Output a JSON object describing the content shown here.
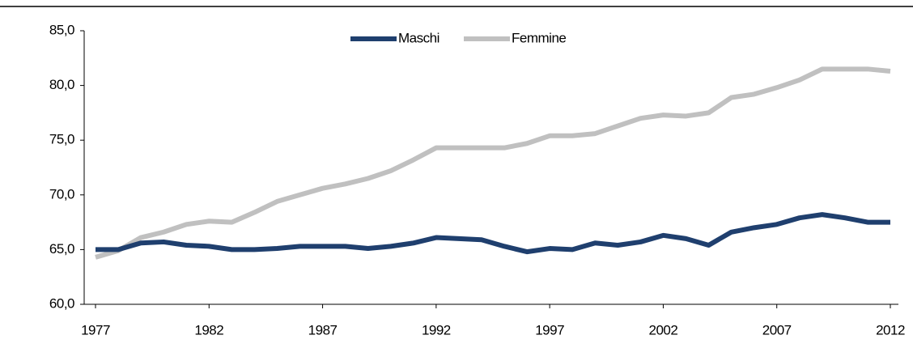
{
  "chart_data": {
    "type": "line",
    "x": [
      1977,
      1978,
      1979,
      1980,
      1981,
      1982,
      1983,
      1984,
      1985,
      1986,
      1987,
      1988,
      1989,
      1990,
      1991,
      1992,
      1993,
      1994,
      1995,
      1996,
      1997,
      1998,
      1999,
      2000,
      2001,
      2002,
      2003,
      2004,
      2005,
      2006,
      2007,
      2008,
      2009,
      2010,
      2011,
      2012
    ],
    "series": [
      {
        "name": "Maschi",
        "color": "#1f3f6e",
        "values": [
          65.0,
          65.0,
          65.6,
          65.7,
          65.4,
          65.3,
          65.0,
          65.0,
          65.1,
          65.3,
          65.3,
          65.3,
          65.1,
          65.3,
          65.6,
          66.1,
          66.0,
          65.9,
          65.3,
          64.8,
          65.1,
          65.0,
          65.6,
          65.4,
          65.7,
          66.3,
          66.0,
          65.4,
          66.6,
          67.0,
          67.3,
          67.9,
          68.2,
          67.9,
          67.5,
          67.5
        ]
      },
      {
        "name": "Femmine",
        "color": "#c0c0c0",
        "values": [
          64.3,
          64.9,
          66.1,
          66.6,
          67.3,
          67.6,
          67.5,
          68.4,
          69.4,
          70.0,
          70.6,
          71.0,
          71.5,
          72.2,
          73.2,
          74.3,
          74.3,
          74.3,
          74.3,
          74.7,
          75.4,
          75.4,
          75.6,
          76.3,
          77.0,
          77.3,
          77.2,
          77.5,
          78.9,
          79.2,
          79.8,
          80.5,
          81.5,
          81.5,
          81.5,
          81.3
        ]
      }
    ],
    "xlim": [
      1977,
      2012
    ],
    "xticks": [
      1977,
      1982,
      1987,
      1992,
      1997,
      2002,
      2007,
      2012
    ],
    "ylim": [
      60,
      85
    ],
    "yticks": [
      {
        "value": 60,
        "label": "60,0"
      },
      {
        "value": 65,
        "label": "65,0"
      },
      {
        "value": 70,
        "label": "70,0"
      },
      {
        "value": 75,
        "label": "75,0"
      },
      {
        "value": 80,
        "label": "80,0"
      },
      {
        "value": 85,
        "label": "85,0"
      }
    ],
    "grid": false,
    "legend": "top"
  }
}
